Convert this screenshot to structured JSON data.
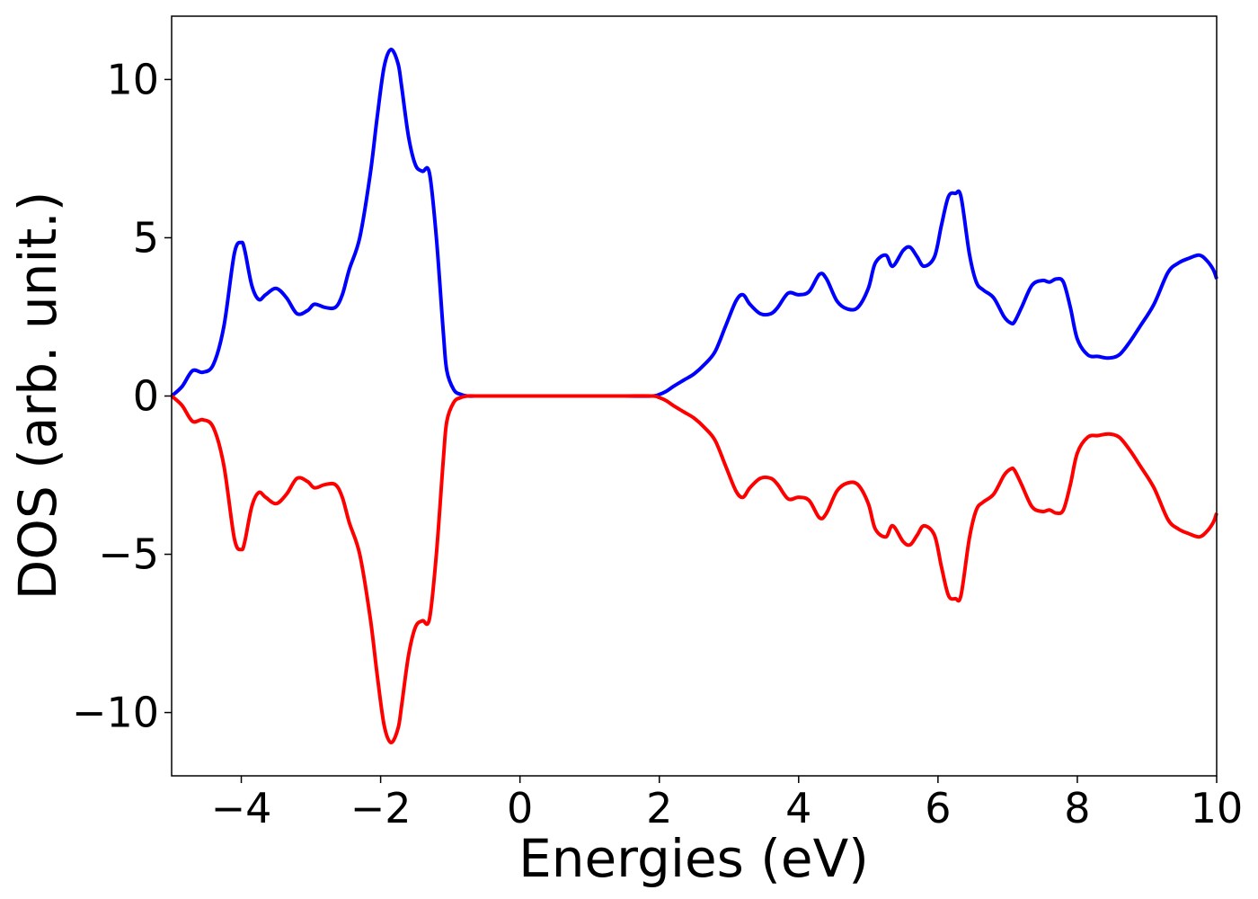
{
  "chart_data": {
    "type": "line",
    "title": "",
    "xlabel": "Energies (eV)",
    "ylabel": "DOS (arb. unit.)",
    "xlim": [
      -5,
      10
    ],
    "ylim": [
      -12,
      12
    ],
    "xticks": [
      -4,
      -2,
      0,
      2,
      4,
      6,
      8,
      10
    ],
    "xtick_labels": [
      "−4",
      "−2",
      "0",
      "2",
      "4",
      "6",
      "8",
      "10"
    ],
    "yticks": [
      -10,
      -5,
      0,
      5,
      10
    ],
    "ytick_labels": [
      "−10",
      "−5",
      "0",
      "5",
      "10"
    ],
    "grid": false,
    "legend": "none",
    "series": [
      {
        "color": "#0000ff",
        "x": [
          -5.0,
          -4.85,
          -4.7,
          -4.55,
          -4.4,
          -4.25,
          -4.1,
          -4.0,
          -3.95,
          -3.85,
          -3.75,
          -3.65,
          -3.5,
          -3.35,
          -3.2,
          -3.05,
          -2.95,
          -2.8,
          -2.65,
          -2.55,
          -2.45,
          -2.3,
          -2.15,
          -2.05,
          -1.95,
          -1.85,
          -1.75,
          -1.7,
          -1.6,
          -1.5,
          -1.4,
          -1.3,
          -1.2,
          -1.1,
          -1.05,
          -0.95,
          -0.85,
          -0.75,
          -0.6,
          -0.5,
          0.0,
          0.5,
          1.0,
          1.5,
          1.9,
          2.0,
          2.1,
          2.2,
          2.35,
          2.5,
          2.65,
          2.8,
          2.95,
          3.1,
          3.2,
          3.3,
          3.45,
          3.6,
          3.7,
          3.85,
          4.0,
          4.15,
          4.3,
          4.4,
          4.55,
          4.7,
          4.85,
          5.0,
          5.1,
          5.25,
          5.35,
          5.5,
          5.6,
          5.7,
          5.8,
          5.95,
          6.05,
          6.15,
          6.25,
          6.33,
          6.45,
          6.55,
          6.65,
          6.8,
          6.95,
          7.05,
          7.1,
          7.2,
          7.35,
          7.5,
          7.6,
          7.7,
          7.8,
          7.9,
          8.0,
          8.15,
          8.3,
          8.45,
          8.6,
          8.75,
          8.9,
          9.1,
          9.3,
          9.45,
          9.6,
          9.75,
          9.85,
          9.95,
          10.0
        ],
        "values": [
          0.0,
          0.3,
          0.8,
          0.75,
          1.0,
          2.2,
          4.5,
          4.85,
          4.6,
          3.5,
          3.05,
          3.2,
          3.4,
          3.1,
          2.6,
          2.7,
          2.9,
          2.8,
          2.8,
          3.2,
          4.0,
          5.0,
          7.0,
          8.8,
          10.4,
          10.95,
          10.5,
          9.8,
          8.2,
          7.3,
          7.1,
          7.05,
          5.0,
          2.0,
          0.8,
          0.2,
          0.05,
          0.0,
          0.0,
          0.0,
          0.0,
          0.0,
          0.0,
          0.0,
          0.0,
          0.05,
          0.15,
          0.3,
          0.5,
          0.7,
          1.0,
          1.4,
          2.2,
          3.0,
          3.2,
          2.9,
          2.6,
          2.6,
          2.8,
          3.25,
          3.2,
          3.3,
          3.85,
          3.7,
          3.0,
          2.75,
          2.8,
          3.4,
          4.2,
          4.45,
          4.1,
          4.6,
          4.7,
          4.4,
          4.1,
          4.4,
          5.4,
          6.3,
          6.4,
          6.3,
          4.5,
          3.6,
          3.35,
          3.1,
          2.5,
          2.3,
          2.35,
          2.8,
          3.5,
          3.65,
          3.6,
          3.7,
          3.6,
          2.8,
          1.8,
          1.3,
          1.25,
          1.2,
          1.3,
          1.7,
          2.2,
          2.9,
          3.9,
          4.2,
          4.35,
          4.45,
          4.3,
          4.0,
          3.7
        ]
      },
      {
        "color": "#ff0000",
        "x": [
          -5.0,
          -4.85,
          -4.7,
          -4.55,
          -4.4,
          -4.25,
          -4.1,
          -4.0,
          -3.95,
          -3.85,
          -3.75,
          -3.65,
          -3.5,
          -3.35,
          -3.2,
          -3.05,
          -2.95,
          -2.8,
          -2.65,
          -2.55,
          -2.45,
          -2.3,
          -2.15,
          -2.05,
          -1.95,
          -1.85,
          -1.75,
          -1.7,
          -1.6,
          -1.5,
          -1.4,
          -1.3,
          -1.2,
          -1.1,
          -1.05,
          -0.95,
          -0.85,
          -0.75,
          -0.6,
          -0.5,
          0.0,
          0.5,
          1.0,
          1.5,
          1.9,
          2.0,
          2.1,
          2.2,
          2.35,
          2.5,
          2.65,
          2.8,
          2.95,
          3.1,
          3.2,
          3.3,
          3.45,
          3.6,
          3.7,
          3.85,
          4.0,
          4.15,
          4.3,
          4.4,
          4.55,
          4.7,
          4.85,
          5.0,
          5.1,
          5.25,
          5.35,
          5.5,
          5.6,
          5.7,
          5.8,
          5.95,
          6.05,
          6.15,
          6.25,
          6.33,
          6.45,
          6.55,
          6.65,
          6.8,
          6.95,
          7.05,
          7.1,
          7.2,
          7.35,
          7.5,
          7.6,
          7.7,
          7.8,
          7.9,
          8.0,
          8.15,
          8.3,
          8.45,
          8.6,
          8.75,
          8.9,
          9.1,
          9.3,
          9.45,
          9.6,
          9.75,
          9.85,
          9.95,
          10.0
        ],
        "values": [
          0.0,
          -0.3,
          -0.8,
          -0.75,
          -1.0,
          -2.2,
          -4.5,
          -4.85,
          -4.6,
          -3.5,
          -3.05,
          -3.2,
          -3.4,
          -3.1,
          -2.6,
          -2.7,
          -2.9,
          -2.8,
          -2.8,
          -3.2,
          -4.0,
          -5.0,
          -7.0,
          -8.8,
          -10.4,
          -10.95,
          -10.5,
          -9.8,
          -8.2,
          -7.3,
          -7.1,
          -7.05,
          -5.0,
          -2.0,
          -0.8,
          -0.2,
          -0.05,
          0.0,
          0.0,
          0.0,
          0.0,
          0.0,
          0.0,
          0.0,
          0.0,
          -0.05,
          -0.15,
          -0.3,
          -0.5,
          -0.7,
          -1.0,
          -1.4,
          -2.2,
          -3.0,
          -3.2,
          -2.9,
          -2.6,
          -2.6,
          -2.8,
          -3.25,
          -3.2,
          -3.3,
          -3.85,
          -3.7,
          -3.0,
          -2.75,
          -2.8,
          -3.4,
          -4.2,
          -4.45,
          -4.1,
          -4.6,
          -4.7,
          -4.4,
          -4.1,
          -4.4,
          -5.4,
          -6.3,
          -6.4,
          -6.3,
          -4.5,
          -3.6,
          -3.35,
          -3.1,
          -2.5,
          -2.3,
          -2.35,
          -2.8,
          -3.5,
          -3.65,
          -3.6,
          -3.7,
          -3.6,
          -2.8,
          -1.8,
          -1.3,
          -1.25,
          -1.2,
          -1.3,
          -1.7,
          -2.2,
          -2.9,
          -3.9,
          -4.2,
          -4.35,
          -4.45,
          -4.3,
          -4.0,
          -3.7
        ]
      }
    ]
  }
}
